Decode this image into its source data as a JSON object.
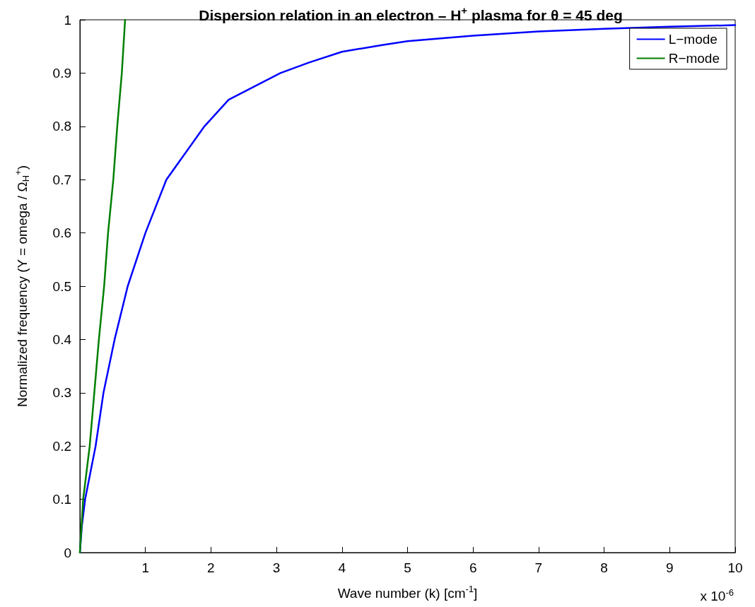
{
  "chart_data": {
    "type": "line",
    "title": "Dispersion relation in an electron – H$^{+}$ plasma for θ = 45 deg",
    "xlabel": "Wave number (k) [cm$^{-1}$]",
    "ylabel": "Normalized frequency (Y = omega / Ω$_{H}$$^{+}$)",
    "annotations": [
      "x 10$^{-6}$"
    ],
    "series": [
      {
        "name": "L−mode",
        "color": "#0000ff",
        "x": [
          0,
          0.03,
          0.08,
          0.24,
          0.36,
          0.53,
          0.73,
          1.0,
          1.32,
          1.9,
          2.27,
          3.06,
          3.5,
          4,
          4.63,
          5,
          6,
          7,
          8,
          9,
          10
        ],
        "values": [
          0,
          0.05,
          0.1,
          0.2,
          0.3,
          0.4,
          0.5,
          0.6,
          0.7,
          0.8,
          0.85,
          0.9,
          0.92,
          0.94,
          0.953,
          0.96,
          0.97,
          0.978,
          0.983,
          0.987,
          0.99
        ]
      },
      {
        "name": "R−mode",
        "color": "#007f00",
        "x": [
          0,
          0.05,
          0.15,
          0.22,
          0.29,
          0.37,
          0.43,
          0.51,
          0.57,
          0.64,
          0.69
        ],
        "values": [
          0,
          0.1,
          0.2,
          0.3,
          0.4,
          0.5,
          0.6,
          0.7,
          0.8,
          0.9,
          1
        ]
      }
    ],
    "xlim": [
      0,
      10
    ],
    "xticks": [
      1,
      2,
      3,
      4,
      5,
      6,
      7,
      8,
      9,
      10
    ],
    "ylim": [
      0,
      1
    ],
    "yticks": [
      0,
      0.1,
      0.2,
      0.3,
      0.4,
      0.5,
      0.6,
      0.7,
      0.8,
      0.9,
      1
    ],
    "grid": false,
    "legend": "top right",
    "marker": "none",
    "line_style": "solid"
  }
}
